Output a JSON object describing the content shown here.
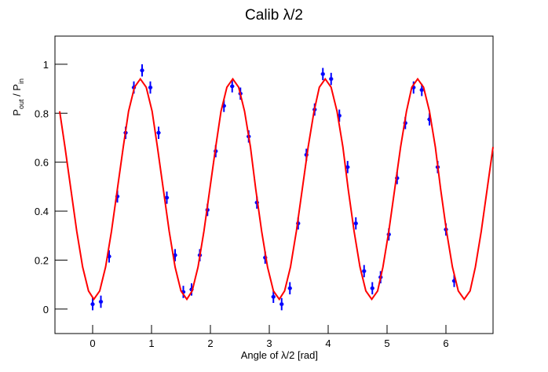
{
  "chart_data": {
    "type": "scatter",
    "title": "Calib λ/2",
    "x_label": "Angle of λ/2 [rad]",
    "y_label": [
      "P",
      "out",
      " / P",
      "in"
    ],
    "xlim": [
      -0.64,
      6.8
    ],
    "ylim": [
      -0.1,
      1.115
    ],
    "xticks": [
      0,
      1,
      2,
      3,
      4,
      5,
      6
    ],
    "yticks": [
      0,
      0.2,
      0.4,
      0.6,
      0.8,
      1
    ],
    "series": [
      {
        "type": "scatter",
        "color": "#0000ff",
        "yerr": 0.025,
        "xerr": 0.035,
        "x": [
          0,
          0.14,
          0.28,
          0.42,
          0.56,
          0.7,
          0.84,
          0.98,
          1.12,
          1.26,
          1.4,
          1.54,
          1.68,
          1.82,
          1.95,
          2.09,
          2.23,
          2.37,
          2.51,
          2.65,
          2.79,
          2.93,
          3.07,
          3.21,
          3.35,
          3.49,
          3.63,
          3.77,
          3.91,
          4.05,
          4.19,
          4.33,
          4.47,
          4.61,
          4.75,
          4.89,
          5.03,
          5.17,
          5.31,
          5.45,
          5.59,
          5.72,
          5.86,
          6.0,
          6.14
        ],
        "values": [
          0.02,
          0.03,
          0.215,
          0.46,
          0.72,
          0.905,
          0.975,
          0.905,
          0.72,
          0.455,
          0.22,
          0.07,
          0.08,
          0.22,
          0.405,
          0.645,
          0.83,
          0.91,
          0.88,
          0.705,
          0.435,
          0.21,
          0.05,
          0.02,
          0.085,
          0.35,
          0.63,
          0.815,
          0.96,
          0.94,
          0.79,
          0.58,
          0.35,
          0.155,
          0.085,
          0.13,
          0.305,
          0.535,
          0.76,
          0.905,
          0.895,
          0.775,
          0.58,
          0.325,
          0.115
        ]
      },
      {
        "type": "line",
        "color": "#ff0000",
        "x": [
          -0.56,
          -0.47,
          -0.37,
          -0.27,
          -0.17,
          -0.07,
          0.02,
          0.12,
          0.22,
          0.32,
          0.42,
          0.52,
          0.61,
          0.71,
          0.81,
          0.91,
          1.01,
          1.1,
          1.2,
          1.3,
          1.4,
          1.5,
          1.6,
          1.69,
          1.79,
          1.89,
          1.99,
          2.09,
          2.18,
          2.28,
          2.38,
          2.48,
          2.58,
          2.68,
          2.77,
          2.87,
          2.97,
          3.07,
          3.17,
          3.26,
          3.36,
          3.46,
          3.56,
          3.66,
          3.76,
          3.85,
          3.95,
          4.05,
          4.15,
          4.25,
          4.34,
          4.44,
          4.54,
          4.64,
          4.74,
          4.84,
          4.93,
          5.03,
          5.13,
          5.23,
          5.33,
          5.42,
          5.52,
          5.62,
          5.72,
          5.82,
          5.91,
          6.01,
          6.11,
          6.21,
          6.31,
          6.41,
          6.5,
          6.6,
          6.7,
          6.8
        ],
        "values": [
          0.808,
          0.662,
          0.49,
          0.318,
          0.172,
          0.074,
          0.04,
          0.074,
          0.172,
          0.318,
          0.49,
          0.662,
          0.808,
          0.906,
          0.94,
          0.906,
          0.808,
          0.662,
          0.49,
          0.318,
          0.172,
          0.074,
          0.04,
          0.074,
          0.172,
          0.318,
          0.49,
          0.662,
          0.808,
          0.906,
          0.94,
          0.906,
          0.808,
          0.662,
          0.49,
          0.318,
          0.172,
          0.074,
          0.04,
          0.074,
          0.172,
          0.318,
          0.49,
          0.662,
          0.808,
          0.906,
          0.94,
          0.906,
          0.808,
          0.662,
          0.49,
          0.318,
          0.172,
          0.074,
          0.04,
          0.074,
          0.172,
          0.318,
          0.49,
          0.662,
          0.808,
          0.906,
          0.94,
          0.906,
          0.808,
          0.662,
          0.49,
          0.318,
          0.172,
          0.074,
          0.04,
          0.074,
          0.172,
          0.318,
          0.49,
          0.662
        ]
      }
    ]
  }
}
